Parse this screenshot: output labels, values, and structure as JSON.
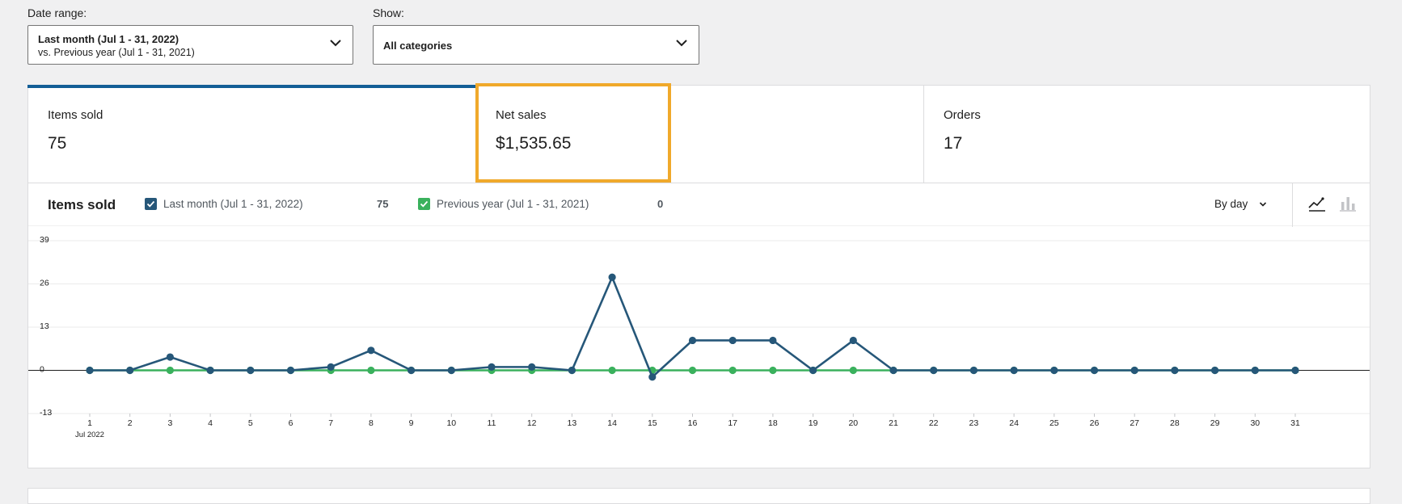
{
  "filters": {
    "date_range_label": "Date range:",
    "date_range_line1": "Last month (Jul 1 - 31, 2022)",
    "date_range_line2": "vs. Previous year (Jul 1 - 31, 2021)",
    "show_label": "Show:",
    "show_value": "All categories"
  },
  "summary": [
    {
      "label": "Items sold",
      "value": "75"
    },
    {
      "label": "Net sales",
      "value": "$1,535.65"
    },
    {
      "label": "Orders",
      "value": "17"
    }
  ],
  "chart_header": {
    "title": "Items sold",
    "legend": [
      {
        "label": "Last month (Jul 1 - 31, 2022)",
        "total": "75",
        "color": "#265779"
      },
      {
        "label": "Previous year (Jul 1 - 31, 2021)",
        "total": "0",
        "color": "#3ab15d"
      }
    ],
    "interval": "By day",
    "icons": [
      "line-chart-icon",
      "bar-chart-icon"
    ]
  },
  "colors": {
    "accent": "#135e96",
    "highlight": "#f0a92b",
    "current": "#265779",
    "previous": "#3ab15d"
  },
  "chart_data": {
    "type": "line",
    "x": [
      1,
      2,
      3,
      4,
      5,
      6,
      7,
      8,
      9,
      10,
      11,
      12,
      13,
      14,
      15,
      16,
      17,
      18,
      19,
      20,
      21,
      22,
      23,
      24,
      25,
      26,
      27,
      28,
      29,
      30,
      31
    ],
    "x_sublabel": "Jul 2022",
    "ylim": [
      -13,
      39
    ],
    "yticks": [
      -13,
      0,
      13,
      26,
      39
    ],
    "grid": true,
    "series": [
      {
        "name": "Last month (Jul 1 - 31, 2022)",
        "values": [
          0,
          0,
          4,
          0,
          0,
          0,
          1,
          6,
          0,
          0,
          1,
          1,
          0,
          28,
          -2,
          9,
          9,
          9,
          0,
          9,
          0,
          0,
          0,
          0,
          0,
          0,
          0,
          0,
          0,
          0,
          0
        ]
      },
      {
        "name": "Previous year (Jul 1 - 31, 2021)",
        "values": [
          0,
          0,
          0,
          0,
          0,
          0,
          0,
          0,
          0,
          0,
          0,
          0,
          0,
          0,
          0,
          0,
          0,
          0,
          0,
          0,
          0,
          0,
          0,
          0,
          0,
          0,
          0,
          0,
          0,
          0,
          0
        ]
      }
    ]
  }
}
